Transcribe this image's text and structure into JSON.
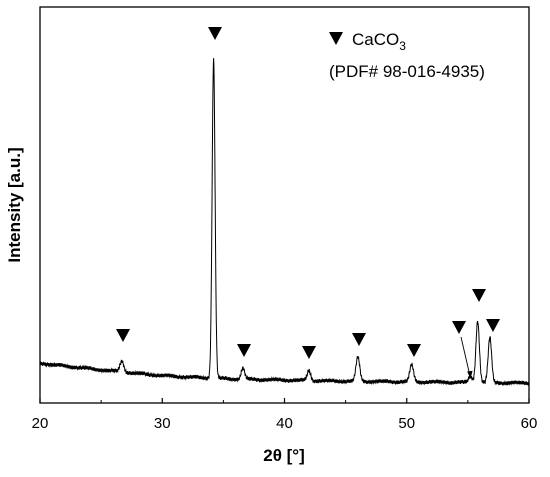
{
  "chart_data": {
    "type": "line",
    "title": "",
    "xlabel": "2θ [°]",
    "ylabel": "Intensity [a.u.]",
    "xlim": [
      20,
      60
    ],
    "x_ticks": [
      20,
      30,
      40,
      50,
      60
    ],
    "y_ticks_labeled": false,
    "grid": false,
    "legend": {
      "placement": "top-right",
      "marker": "filled-down-triangle",
      "compound_base": "CaCO",
      "compound_subscript": "3",
      "reference": "(PDF# 98-016-4935)"
    },
    "baseline": [
      [
        20.0,
        33.0
      ],
      [
        22.0,
        30.0
      ],
      [
        24.0,
        27.5
      ],
      [
        26.0,
        25.0
      ],
      [
        28.0,
        22.5
      ],
      [
        30.0,
        20.5
      ],
      [
        32.0,
        19.0
      ],
      [
        34.0,
        18.0
      ],
      [
        36.0,
        17.0
      ],
      [
        38.0,
        16.5
      ],
      [
        40.0,
        16.0
      ],
      [
        44.0,
        15.0
      ],
      [
        48.0,
        14.5
      ],
      [
        52.0,
        14.0
      ],
      [
        56.0,
        13.5
      ],
      [
        60.0,
        13.0
      ]
    ],
    "peaks": [
      {
        "x": 26.7,
        "intensity": 11,
        "width": 0.22,
        "marked": true
      },
      {
        "x": 34.2,
        "intensity": 320,
        "width": 0.17,
        "marked": true
      },
      {
        "x": 36.6,
        "intensity": 11,
        "width": 0.2,
        "marked": true
      },
      {
        "x": 42.0,
        "intensity": 10,
        "width": 0.2,
        "marked": true
      },
      {
        "x": 46.0,
        "intensity": 24,
        "width": 0.22,
        "marked": true
      },
      {
        "x": 50.4,
        "intensity": 17,
        "width": 0.22,
        "marked": true
      },
      {
        "x": 55.2,
        "intensity": 6,
        "width": 0.2,
        "marked": true
      },
      {
        "x": 55.8,
        "intensity": 62,
        "width": 0.2,
        "marked": true
      },
      {
        "x": 56.8,
        "intensity": 45,
        "width": 0.2,
        "marked": true
      }
    ],
    "y_max": 345,
    "colors": {
      "line": "#000000",
      "marker": "#000000"
    }
  }
}
